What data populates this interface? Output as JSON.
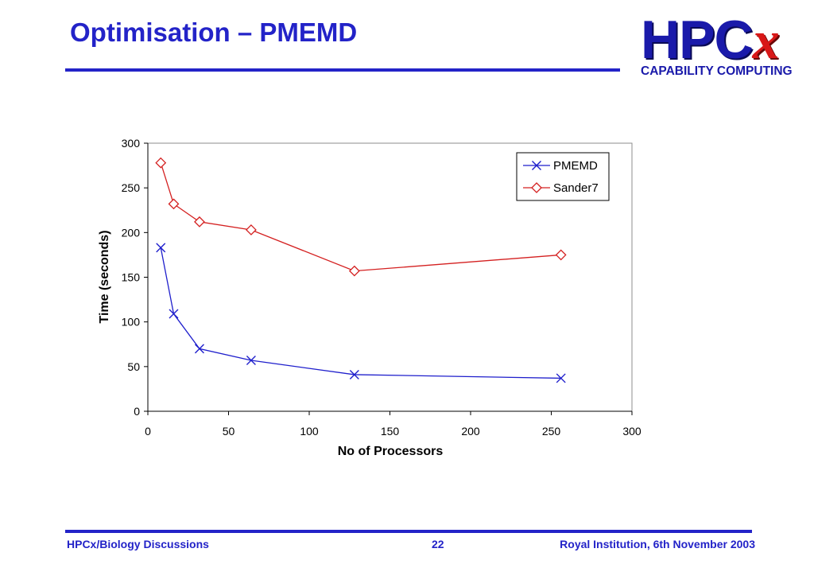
{
  "slide": {
    "title": "Optimisation – PMEMD"
  },
  "logo": {
    "main": "HPC",
    "x": "x",
    "subtitle": "CAPABILITY COMPUTING"
  },
  "footer": {
    "left": "HPCx/Biology Discussions",
    "page": "22",
    "right": "Royal Institution, 6th November 2003"
  },
  "colors": {
    "title": "#2323c8",
    "pmemd": "#1f1fcc",
    "sander7": "#d42020"
  },
  "chart_data": {
    "type": "line",
    "title": "",
    "xlabel": "No of Processors",
    "ylabel": "Time (seconds)",
    "xlim": [
      0,
      300
    ],
    "ylim": [
      0,
      300
    ],
    "xticks": [
      "0",
      "50",
      "100",
      "150",
      "200",
      "250",
      "300"
    ],
    "yticks": [
      "0",
      "50",
      "100",
      "150",
      "200",
      "250",
      "300"
    ],
    "grid": false,
    "legend_position": "top-right",
    "series": [
      {
        "name": "PMEMD",
        "marker": "x",
        "color": "#1f1fcc",
        "x": [
          8,
          16,
          32,
          64,
          128,
          256
        ],
        "y": [
          183,
          109,
          70,
          57,
          41,
          37
        ]
      },
      {
        "name": "Sander7",
        "marker": "diamond",
        "color": "#d42020",
        "x": [
          8,
          16,
          32,
          64,
          128,
          256
        ],
        "y": [
          278,
          232,
          212,
          203,
          157,
          175
        ]
      }
    ]
  }
}
